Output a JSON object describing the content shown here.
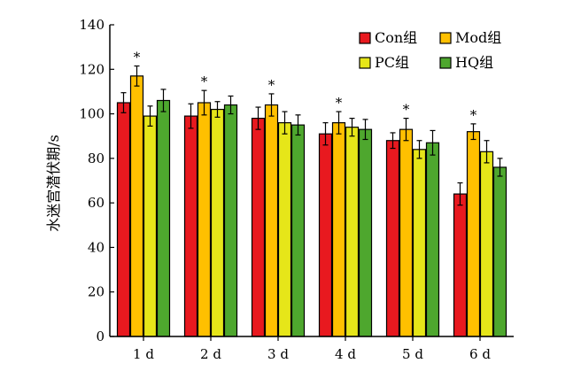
{
  "chart_data": {
    "type": "bar",
    "title": "",
    "xlabel": "",
    "ylabel": "水迷宫潜伏期/s",
    "ylim": [
      0,
      140
    ],
    "yticks": [
      0,
      20,
      40,
      60,
      80,
      100,
      120,
      140
    ],
    "categories": [
      "1 d",
      "2 d",
      "3 d",
      "4 d",
      "5 d",
      "6 d"
    ],
    "legend_position": "top-right",
    "grid": false,
    "series": [
      {
        "name": "Con组",
        "color": "#e8191f",
        "values": [
          105,
          99,
          98,
          91,
          88,
          64
        ],
        "errors": [
          4.5,
          5.5,
          5,
          5,
          3.5,
          5
        ]
      },
      {
        "name": "Mod组",
        "color": "#ffc000",
        "values": [
          117,
          105,
          104,
          96,
          93,
          92
        ],
        "errors": [
          4.5,
          5.5,
          5,
          5,
          5,
          3.5
        ]
      },
      {
        "name": "PC组",
        "color": "#e6e619",
        "values": [
          99,
          102,
          96,
          94,
          84,
          83
        ],
        "errors": [
          4.5,
          3.5,
          5,
          4,
          4,
          5
        ]
      },
      {
        "name": "HQ组",
        "color": "#4ea72e",
        "values": [
          106,
          104,
          95,
          93,
          87,
          76
        ],
        "errors": [
          5,
          4,
          4.5,
          4.5,
          5.5,
          4
        ]
      }
    ],
    "annotations": [
      {
        "category": "1 d",
        "series": "Mod组",
        "text": "*"
      },
      {
        "category": "2 d",
        "series": "Mod组",
        "text": "*"
      },
      {
        "category": "3 d",
        "series": "Mod组",
        "text": "*"
      },
      {
        "category": "4 d",
        "series": "Mod组",
        "text": "*"
      },
      {
        "category": "5 d",
        "series": "Mod组",
        "text": "*"
      },
      {
        "category": "6 d",
        "series": "Mod组",
        "text": "*"
      }
    ]
  }
}
